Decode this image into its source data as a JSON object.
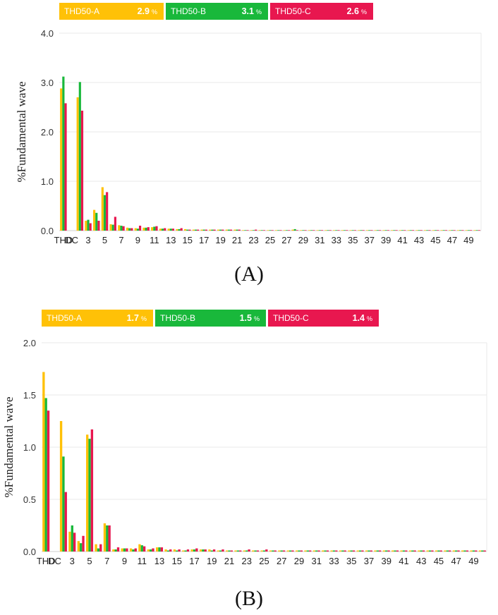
{
  "colors": {
    "phase_a": "#FFC107",
    "phase_b": "#19B83B",
    "phase_c": "#E8174F",
    "grid": "#e8e8e8"
  },
  "chart_data": [
    {
      "type": "bar",
      "caption": "(A)",
      "ylabel": "%Fundamental wave",
      "ylim": [
        0,
        4.0
      ],
      "yticks": [
        "0.0",
        "1.0",
        "2.0",
        "3.0",
        "4.0"
      ],
      "grid": true,
      "legend": [
        {
          "name": "THD50-A",
          "value": "2.9",
          "unit": "%"
        },
        {
          "name": "THD50-B",
          "value": "3.1",
          "unit": "%"
        },
        {
          "name": "THD50-C",
          "value": "2.6",
          "unit": "%"
        }
      ],
      "categories": [
        "THD",
        "DC",
        "2",
        "3",
        "4",
        "5",
        "6",
        "7",
        "8",
        "9",
        "10",
        "11",
        "12",
        "13",
        "14",
        "15",
        "16",
        "17",
        "18",
        "19",
        "20",
        "21",
        "22",
        "23",
        "24",
        "25",
        "26",
        "27",
        "28",
        "29",
        "30",
        "31",
        "32",
        "33",
        "34",
        "35",
        "36",
        "37",
        "38",
        "39",
        "40",
        "41",
        "42",
        "43",
        "44",
        "45",
        "46",
        "47",
        "48",
        "49",
        "50"
      ],
      "xtick_labels": [
        "THD",
        "DC",
        "3",
        "5",
        "7",
        "9",
        "11",
        "13",
        "15",
        "17",
        "19",
        "21",
        "23",
        "25",
        "27",
        "29",
        "31",
        "33",
        "35",
        "37",
        "39",
        "41",
        "43",
        "45",
        "47",
        "49"
      ],
      "series": [
        {
          "name": "THD50-A",
          "values": [
            2.88,
            0,
            2.7,
            0.2,
            0.42,
            0.88,
            0.13,
            0.11,
            0.06,
            0.05,
            0.06,
            0.07,
            0.04,
            0.04,
            0.03,
            0.03,
            0.02,
            0.02,
            0.02,
            0.02,
            0.02,
            0.02,
            0.01,
            0.01,
            0.01,
            0.01,
            0.01,
            0.01,
            0.02,
            0.01,
            0.01,
            0.01,
            0.01,
            0.01,
            0.01,
            0.01,
            0.01,
            0.01,
            0.01,
            0.01,
            0.01,
            0.01,
            0.01,
            0.01,
            0.01,
            0.01,
            0.01,
            0.01,
            0.01,
            0.01,
            0.01
          ]
        },
        {
          "name": "THD50-B",
          "values": [
            3.12,
            0,
            3.01,
            0.22,
            0.36,
            0.72,
            0.12,
            0.1,
            0.05,
            0.04,
            0.06,
            0.08,
            0.04,
            0.04,
            0.03,
            0.02,
            0.02,
            0.02,
            0.02,
            0.02,
            0.02,
            0.02,
            0.01,
            0.01,
            0.01,
            0.01,
            0.01,
            0.01,
            0.03,
            0.01,
            0.01,
            0.01,
            0.01,
            0.01,
            0.01,
            0.01,
            0.01,
            0.01,
            0.01,
            0.01,
            0.01,
            0.01,
            0.01,
            0.01,
            0.01,
            0.01,
            0.01,
            0.01,
            0.01,
            0.01,
            0.01
          ]
        },
        {
          "name": "THD50-C",
          "values": [
            2.58,
            0,
            2.43,
            0.15,
            0.2,
            0.78,
            0.28,
            0.09,
            0.05,
            0.1,
            0.07,
            0.09,
            0.05,
            0.04,
            0.05,
            0.02,
            0.02,
            0.02,
            0.02,
            0.02,
            0.02,
            0.02,
            0.01,
            0.02,
            0.01,
            0.01,
            0.01,
            0.01,
            0.01,
            0.01,
            0.01,
            0.01,
            0.01,
            0.01,
            0.01,
            0.01,
            0.01,
            0.01,
            0.01,
            0.01,
            0.01,
            0.01,
            0.01,
            0.01,
            0.01,
            0.01,
            0.01,
            0.01,
            0.01,
            0.01,
            0.01
          ]
        }
      ]
    },
    {
      "type": "bar",
      "caption": "(B)",
      "ylabel": "%Fundamental wave",
      "ylim": [
        0,
        2.0
      ],
      "yticks": [
        "0.0",
        "0.5",
        "1.0",
        "1.5",
        "2.0"
      ],
      "grid": true,
      "legend": [
        {
          "name": "THD50-A",
          "value": "1.7",
          "unit": "%"
        },
        {
          "name": "THD50-B",
          "value": "1.5",
          "unit": "%"
        },
        {
          "name": "THD50-C",
          "value": "1.4",
          "unit": "%"
        }
      ],
      "categories": [
        "THD",
        "DC",
        "2",
        "3",
        "4",
        "5",
        "6",
        "7",
        "8",
        "9",
        "10",
        "11",
        "12",
        "13",
        "14",
        "15",
        "16",
        "17",
        "18",
        "19",
        "20",
        "21",
        "22",
        "23",
        "24",
        "25",
        "26",
        "27",
        "28",
        "29",
        "30",
        "31",
        "32",
        "33",
        "34",
        "35",
        "36",
        "37",
        "38",
        "39",
        "40",
        "41",
        "42",
        "43",
        "44",
        "45",
        "46",
        "47",
        "48",
        "49",
        "50"
      ],
      "xtick_labels": [
        "THD",
        "DC",
        "3",
        "5",
        "7",
        "9",
        "11",
        "13",
        "15",
        "17",
        "19",
        "21",
        "23",
        "25",
        "27",
        "29",
        "31",
        "33",
        "35",
        "37",
        "39",
        "41",
        "43",
        "45",
        "47",
        "49"
      ],
      "series": [
        {
          "name": "THD50-A",
          "values": [
            1.72,
            0,
            1.25,
            0.19,
            0.1,
            1.12,
            0.07,
            0.27,
            0.02,
            0.03,
            0.03,
            0.07,
            0.02,
            0.04,
            0.02,
            0.02,
            0.01,
            0.02,
            0.02,
            0.02,
            0.01,
            0.01,
            0.01,
            0.01,
            0.01,
            0.01,
            0.01,
            0.01,
            0.01,
            0.01,
            0.01,
            0.01,
            0.01,
            0.01,
            0.01,
            0.01,
            0.01,
            0.01,
            0.01,
            0.01,
            0.01,
            0.01,
            0.01,
            0.01,
            0.01,
            0.01,
            0.01,
            0.01,
            0.01,
            0.01,
            0.01
          ]
        },
        {
          "name": "THD50-B",
          "values": [
            1.47,
            0,
            0.91,
            0.25,
            0.08,
            1.08,
            0.03,
            0.25,
            0.02,
            0.03,
            0.02,
            0.06,
            0.02,
            0.04,
            0.01,
            0.01,
            0.01,
            0.02,
            0.02,
            0.01,
            0.01,
            0.01,
            0.01,
            0.01,
            0.01,
            0.01,
            0.01,
            0.01,
            0.01,
            0.01,
            0.01,
            0.01,
            0.01,
            0.01,
            0.01,
            0.01,
            0.01,
            0.01,
            0.01,
            0.01,
            0.01,
            0.01,
            0.01,
            0.01,
            0.01,
            0.01,
            0.01,
            0.01,
            0.01,
            0.01,
            0.01
          ]
        },
        {
          "name": "THD50-C",
          "values": [
            1.35,
            0,
            0.57,
            0.18,
            0.15,
            1.17,
            0.07,
            0.25,
            0.04,
            0.03,
            0.03,
            0.05,
            0.03,
            0.04,
            0.02,
            0.02,
            0.02,
            0.03,
            0.02,
            0.02,
            0.02,
            0.01,
            0.01,
            0.02,
            0.01,
            0.02,
            0.01,
            0.01,
            0.01,
            0.01,
            0.01,
            0.01,
            0.01,
            0.01,
            0.01,
            0.01,
            0.01,
            0.01,
            0.01,
            0.01,
            0.01,
            0.01,
            0.01,
            0.01,
            0.01,
            0.01,
            0.01,
            0.01,
            0.01,
            0.01,
            0.01
          ]
        }
      ]
    }
  ]
}
